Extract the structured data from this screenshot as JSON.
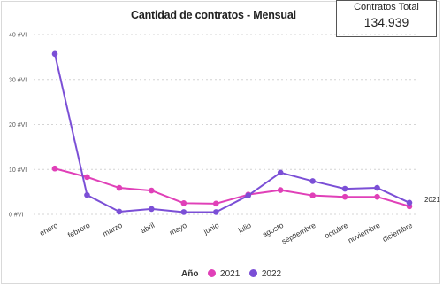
{
  "kpi": {
    "label": "Contratos Total",
    "value": "134.939"
  },
  "chart_data": {
    "type": "line",
    "title": "Cantidad de contratos - Mensual",
    "categories": [
      "enero",
      "febrero",
      "marzo",
      "abril",
      "mayo",
      "junio",
      "julio",
      "agosto",
      "septiembre",
      "octubre",
      "noviembre",
      "diciembre"
    ],
    "ytick_labels": [
      "0 #VI",
      "10 #VI",
      "20 #VI",
      "30 #VI",
      "40 #VI"
    ],
    "ytick_values": [
      0,
      10,
      20,
      30,
      40
    ],
    "ylim": [
      0,
      40
    ],
    "grid": true,
    "legend": {
      "title": "Año",
      "position": "bottom"
    },
    "series": [
      {
        "name": "2021",
        "color": "#e040b8",
        "values": [
          10.2,
          8.3,
          5.9,
          5.3,
          2.5,
          2.4,
          4.4,
          5.4,
          4.2,
          3.9,
          3.9,
          1.8
        ]
      },
      {
        "name": "2022",
        "color": "#7b4fd6",
        "values": [
          35.7,
          4.3,
          0.6,
          1.2,
          0.5,
          0.5,
          4.2,
          9.3,
          7.4,
          5.7,
          5.9,
          2.6
        ]
      }
    ],
    "end_label": "2021"
  }
}
